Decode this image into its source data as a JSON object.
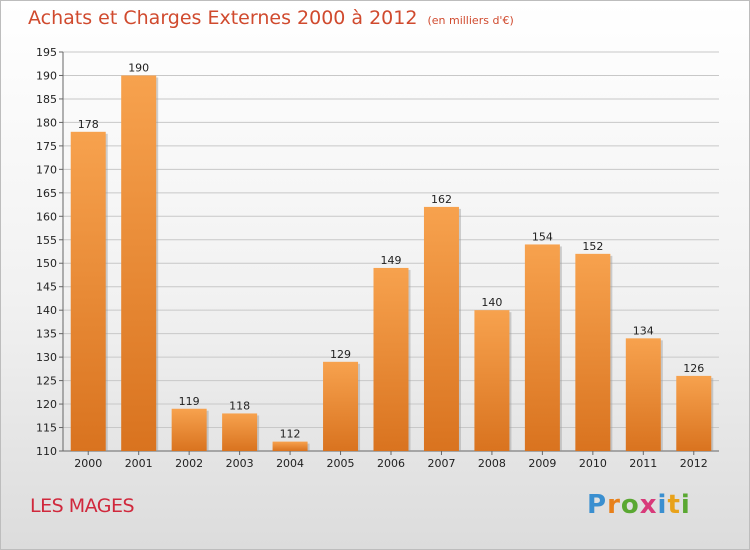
{
  "header": {
    "title": "Achats et Charges Externes 2000 à 2012",
    "unit": "(en milliers d'€)"
  },
  "footer": {
    "place": "LES MAGES",
    "logo_letters": [
      {
        "ch": "P",
        "color": "#3a8fd0"
      },
      {
        "ch": "r",
        "color": "#e8801a"
      },
      {
        "ch": "o",
        "color": "#5aa832"
      },
      {
        "ch": "x",
        "color": "#d83a7a"
      },
      {
        "ch": "i",
        "color": "#3a8fd0"
      },
      {
        "ch": "t",
        "color": "#e8a21a"
      },
      {
        "ch": "i",
        "color": "#5aa832"
      }
    ]
  },
  "chart_data": {
    "type": "bar",
    "categories": [
      "2000",
      "2001",
      "2002",
      "2003",
      "2004",
      "2005",
      "2006",
      "2007",
      "2008",
      "2009",
      "2010",
      "2011",
      "2012"
    ],
    "values": [
      178,
      190,
      119,
      118,
      112,
      129,
      149,
      162,
      140,
      154,
      152,
      134,
      126
    ],
    "title": "Achats et Charges Externes 2000 à 2012",
    "ylim": [
      110,
      195
    ],
    "yticks": [
      110,
      115,
      120,
      125,
      130,
      135,
      140,
      145,
      150,
      155,
      160,
      165,
      170,
      175,
      180,
      185,
      190,
      195
    ],
    "grid": true,
    "bar_color_light": "#f7a24e",
    "bar_color_dark": "#d9731f"
  }
}
